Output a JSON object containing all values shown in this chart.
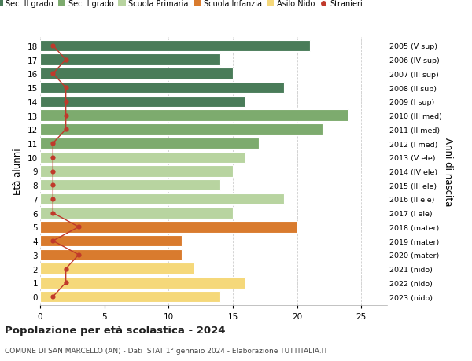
{
  "ages": [
    18,
    17,
    16,
    15,
    14,
    13,
    12,
    11,
    10,
    9,
    8,
    7,
    6,
    5,
    4,
    3,
    2,
    1,
    0
  ],
  "years": [
    "2005 (V sup)",
    "2006 (IV sup)",
    "2007 (III sup)",
    "2008 (II sup)",
    "2009 (I sup)",
    "2010 (III med)",
    "2011 (II med)",
    "2012 (I med)",
    "2013 (V ele)",
    "2014 (IV ele)",
    "2015 (III ele)",
    "2016 (II ele)",
    "2017 (I ele)",
    "2018 (mater)",
    "2019 (mater)",
    "2020 (mater)",
    "2021 (nido)",
    "2022 (nido)",
    "2023 (nido)"
  ],
  "bar_values": [
    21,
    14,
    15,
    19,
    16,
    24,
    22,
    17,
    16,
    15,
    14,
    19,
    15,
    20,
    11,
    11,
    12,
    16,
    14
  ],
  "bar_colors": [
    "#4a7c59",
    "#4a7c59",
    "#4a7c59",
    "#4a7c59",
    "#4a7c59",
    "#7dab6e",
    "#7dab6e",
    "#7dab6e",
    "#b8d4a0",
    "#b8d4a0",
    "#b8d4a0",
    "#b8d4a0",
    "#b8d4a0",
    "#d97b2e",
    "#d97b2e",
    "#d97b2e",
    "#f5d87a",
    "#f5d87a",
    "#f5d87a"
  ],
  "stranieri_values": [
    1,
    2,
    1,
    2,
    2,
    2,
    2,
    1,
    1,
    1,
    1,
    1,
    1,
    3,
    1,
    3,
    2,
    2,
    1
  ],
  "stranieri_color": "#c0392b",
  "legend_labels": [
    "Sec. II grado",
    "Sec. I grado",
    "Scuola Primaria",
    "Scuola Infanzia",
    "Asilo Nido",
    "Stranieri"
  ],
  "legend_colors": [
    "#4a7c59",
    "#7dab6e",
    "#b8d4a0",
    "#d97b2e",
    "#f5d87a",
    "#c0392b"
  ],
  "legend_marker_types": [
    "bar",
    "bar",
    "bar",
    "bar",
    "bar",
    "dot"
  ],
  "title": "Popolazione per età scolastica - 2024",
  "subtitle": "COMUNE DI SAN MARCELLO (AN) - Dati ISTAT 1° gennaio 2024 - Elaborazione TUTTITALIA.IT",
  "ylabel_left": "Età alunni",
  "ylabel_right": "Anni di nascita",
  "xlim": [
    0,
    27
  ],
  "xticks": [
    0,
    5,
    10,
    15,
    20,
    25
  ],
  "background_color": "#ffffff",
  "grid_color": "#cccccc",
  "bar_height": 0.82
}
